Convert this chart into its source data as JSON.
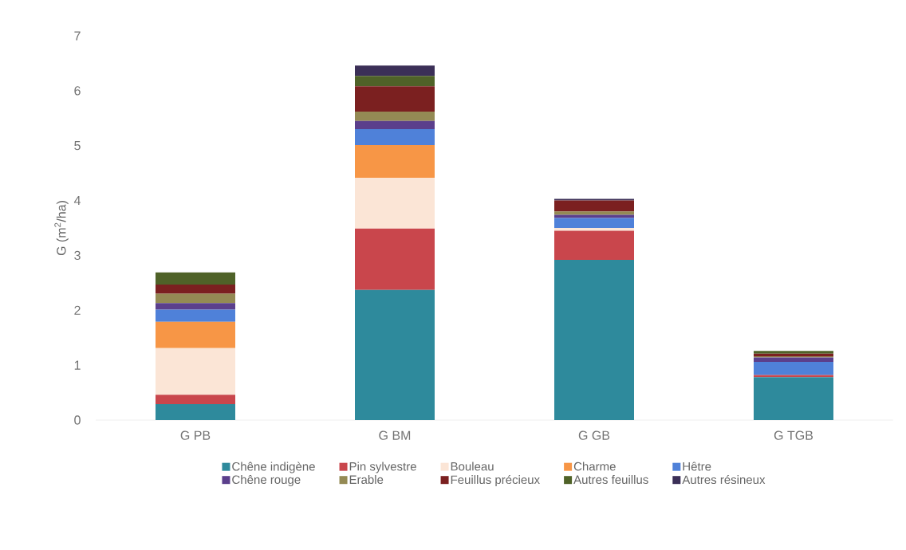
{
  "chart_data": {
    "type": "bar",
    "stacked": true,
    "ylabel": "G (m$^{2}$/ha)",
    "categories": [
      "G PB",
      "G BM",
      "G GB",
      "G TGB"
    ],
    "ylim": [
      0,
      7
    ],
    "yticks": [
      0,
      1,
      2,
      3,
      4,
      5,
      6,
      7
    ],
    "grid": false,
    "legend": "bottom",
    "series": [
      {
        "name": "Chêne indigène",
        "color": "#2e8a9c",
        "values": [
          0.29,
          2.37,
          2.92,
          0.78
        ]
      },
      {
        "name": "Pin sylvestre",
        "color": "#c9464c",
        "values": [
          0.17,
          1.12,
          0.53,
          0.04
        ]
      },
      {
        "name": "Bouleau",
        "color": "#fbe5d6",
        "values": [
          0.85,
          0.92,
          0.05,
          0
        ]
      },
      {
        "name": "Charme",
        "color": "#f79646",
        "values": [
          0.48,
          0.6,
          0,
          0
        ]
      },
      {
        "name": "Hêtre",
        "color": "#4f81d9",
        "values": [
          0.22,
          0.29,
          0.18,
          0.24
        ]
      },
      {
        "name": "Chêne rouge",
        "color": "#5b3f8c",
        "values": [
          0.12,
          0.15,
          0.06,
          0.08
        ]
      },
      {
        "name": "Erable",
        "color": "#948a54",
        "values": [
          0.17,
          0.17,
          0.06,
          0.02
        ]
      },
      {
        "name": "Feuillus précieux",
        "color": "#7b2020",
        "values": [
          0.17,
          0.46,
          0.2,
          0.05
        ]
      },
      {
        "name": "Autres feuillus",
        "color": "#4f6228",
        "values": [
          0.22,
          0.19,
          0,
          0.05
        ]
      },
      {
        "name": "Autres résineux",
        "color": "#3b2f57",
        "values": [
          0,
          0.19,
          0.03,
          0
        ]
      }
    ]
  }
}
